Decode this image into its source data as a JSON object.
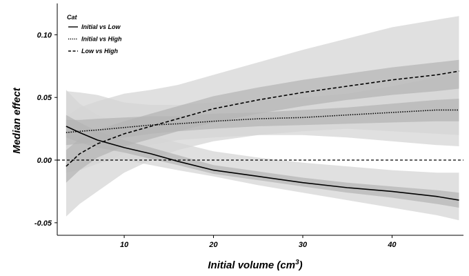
{
  "chart_data": {
    "type": "line",
    "xlabel": "Initial volume",
    "xlabel_unit_base": "cm",
    "xlabel_unit_exp": "3",
    "ylabel": "Median effect",
    "xlim": [
      2.5,
      48
    ],
    "ylim": [
      -0.06,
      0.125
    ],
    "xticks": [
      10,
      20,
      30,
      40
    ],
    "yticks": [
      -0.05,
      0.0,
      0.05,
      0.1
    ],
    "ytick_labels": [
      "-0.05",
      "0.00",
      "0.05",
      "0.10"
    ],
    "reference_line": {
      "y": 0,
      "style": "dashed"
    },
    "legend": {
      "title": "Cat",
      "position": "top-left"
    },
    "band_colors": {
      "outer": "#d6d6d6",
      "inner": "#b3b3b3"
    },
    "series": [
      {
        "name": "Initial vs Low",
        "dash": "solid",
        "x": [
          3.5,
          5,
          7,
          10,
          13,
          16,
          20,
          25,
          30,
          35,
          40,
          45,
          47.5
        ],
        "y": [
          0.027,
          0.022,
          0.016,
          0.01,
          0.005,
          -0.001,
          -0.008,
          -0.013,
          -0.018,
          -0.022,
          -0.025,
          -0.029,
          -0.032
        ],
        "outer_lo": [
          -0.008,
          -0.005,
          -0.002,
          0.0,
          -0.004,
          -0.008,
          -0.013,
          -0.02,
          -0.026,
          -0.032,
          -0.038,
          -0.044,
          -0.048
        ],
        "outer_hi": [
          0.056,
          0.045,
          0.036,
          0.028,
          0.02,
          0.014,
          0.007,
          0.002,
          -0.002,
          -0.005,
          -0.008,
          -0.01,
          -0.01
        ],
        "inner_lo": [
          0.018,
          0.014,
          0.01,
          0.006,
          0.001,
          -0.004,
          -0.011,
          -0.016,
          -0.021,
          -0.026,
          -0.03,
          -0.035,
          -0.038
        ],
        "inner_hi": [
          0.036,
          0.03,
          0.023,
          0.016,
          0.01,
          0.004,
          -0.004,
          -0.009,
          -0.014,
          -0.018,
          -0.021,
          -0.024,
          -0.026
        ]
      },
      {
        "name": "Initial vs High",
        "dash": "dotted",
        "x": [
          3.5,
          5,
          7,
          10,
          13,
          16,
          20,
          25,
          30,
          35,
          40,
          45,
          47.5
        ],
        "y": [
          0.022,
          0.023,
          0.024,
          0.026,
          0.028,
          0.029,
          0.031,
          0.033,
          0.034,
          0.036,
          0.038,
          0.04,
          0.04
        ],
        "outer_lo": [
          -0.01,
          -0.008,
          -0.003,
          0.005,
          0.012,
          0.016,
          0.018,
          0.02,
          0.02,
          0.018,
          0.015,
          0.012,
          0.011
        ],
        "outer_hi": [
          0.055,
          0.054,
          0.052,
          0.046,
          0.044,
          0.044,
          0.046,
          0.048,
          0.05,
          0.053,
          0.059,
          0.066,
          0.07
        ],
        "inner_lo": [
          0.012,
          0.013,
          0.015,
          0.018,
          0.021,
          0.023,
          0.025,
          0.027,
          0.028,
          0.029,
          0.03,
          0.031,
          0.031
        ],
        "inner_hi": [
          0.032,
          0.032,
          0.033,
          0.034,
          0.035,
          0.035,
          0.037,
          0.038,
          0.04,
          0.042,
          0.045,
          0.048,
          0.049
        ]
      },
      {
        "name": "Low vs High",
        "dash": "dashed",
        "x": [
          3.5,
          5,
          7,
          10,
          13,
          16,
          20,
          25,
          30,
          35,
          40,
          45,
          47.5
        ],
        "y": [
          -0.005,
          0.005,
          0.013,
          0.021,
          0.027,
          0.033,
          0.041,
          0.048,
          0.054,
          0.059,
          0.064,
          0.068,
          0.071
        ],
        "outer_lo": [
          -0.045,
          -0.035,
          -0.025,
          -0.01,
          0.0,
          0.008,
          0.015,
          0.02,
          0.023,
          0.025,
          0.023,
          0.021,
          0.02
        ],
        "outer_hi": [
          0.035,
          0.042,
          0.047,
          0.053,
          0.056,
          0.06,
          0.068,
          0.078,
          0.088,
          0.097,
          0.106,
          0.112,
          0.115
        ],
        "inner_lo": [
          -0.018,
          -0.008,
          0.002,
          0.011,
          0.017,
          0.023,
          0.03,
          0.037,
          0.043,
          0.048,
          0.052,
          0.055,
          0.057
        ],
        "inner_hi": [
          0.008,
          0.017,
          0.024,
          0.031,
          0.037,
          0.043,
          0.051,
          0.058,
          0.064,
          0.069,
          0.074,
          0.078,
          0.08
        ]
      }
    ]
  }
}
